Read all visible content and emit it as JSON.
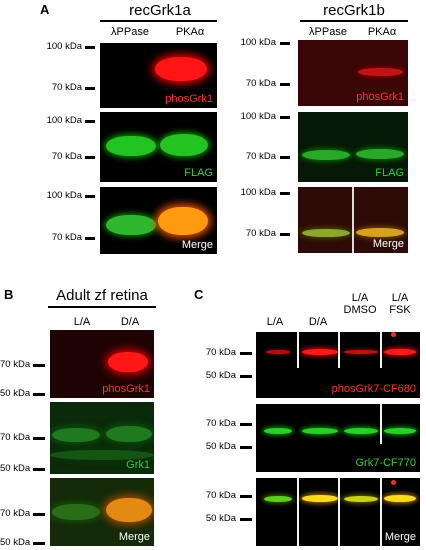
{
  "panels": {
    "A": {
      "letter": "A",
      "left": {
        "title": "recGrk1a",
        "lanes": [
          "λPPase",
          "PKAα"
        ],
        "mw": [
          "100 kDa",
          "70 kDa",
          "100 kDa",
          "70 kDa",
          "100 kDa",
          "70 kDa"
        ],
        "labels": [
          "phosGrk1",
          "FLAG",
          "Merge"
        ]
      },
      "right": {
        "title": "recGrk1b",
        "lanes": [
          "λPPase",
          "PKAα"
        ],
        "mw": [
          "100 kDa",
          "70 kDa",
          "100 kDa",
          "70 kDa",
          "100 kDa",
          "70 kDa"
        ],
        "labels": [
          "phosGrk1",
          "FLAG",
          "Merge"
        ]
      }
    },
    "B": {
      "letter": "B",
      "title": "Adult zf retina",
      "lanes": [
        "L/A",
        "D/A"
      ],
      "mw": [
        "70 kDa",
        "50 kDa",
        "70 kDa",
        "50 kDa",
        "70 kDa",
        "50 kDa"
      ],
      "labels": [
        "phosGrk1",
        "Grk1",
        "Merge"
      ]
    },
    "C": {
      "letter": "C",
      "lanes": [
        {
          "l1": "",
          "l2": "L/A"
        },
        {
          "l1": "",
          "l2": "D/A"
        },
        {
          "l1": "L/A",
          "l2": "DMSO"
        },
        {
          "l1": "L/A",
          "l2": "FSK"
        }
      ],
      "mw": [
        "70 kDa",
        "50 kDa",
        "70 kDa",
        "50 kDa",
        "70 kDa",
        "50 kDa"
      ],
      "labels": [
        "phosGrk7-CF680",
        "Grk7-CF770",
        "Merge"
      ]
    }
  },
  "colors": {
    "red_channel": "#ff2020",
    "green_channel": "#22cc22",
    "merge": "#ffcc00",
    "blot_background": "#000000"
  }
}
